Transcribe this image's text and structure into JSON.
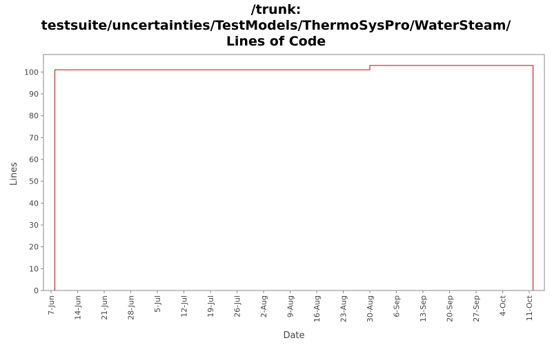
{
  "chart_data": {
    "type": "step",
    "title": [
      "/trunk:",
      "testsuite/uncertainties/TestModels/ThermoSysPro/WaterSteam/",
      "Lines of Code"
    ],
    "x_label": "Date",
    "y_label": "Lines",
    "x": [
      "8-Jun",
      "8-Jun",
      "30-Aug",
      "12-Oct"
    ],
    "values": [
      0,
      101,
      103,
      0
    ],
    "color": "#cc0000",
    "xlim": [
      "5-Jun",
      "15-Oct"
    ],
    "xticks": [
      "7-Jun",
      "14-Jun",
      "21-Jun",
      "28-Jun",
      "5-Jul",
      "12-Jul",
      "19-Jul",
      "26-Jul",
      "2-Aug",
      "9-Aug",
      "16-Aug",
      "23-Aug",
      "30-Aug",
      "6-Sep",
      "13-Sep",
      "20-Sep",
      "27-Sep",
      "4-Oct",
      "11-Oct"
    ],
    "ylim": [
      0,
      108
    ],
    "yticks": [
      0,
      10,
      20,
      30,
      40,
      50,
      60,
      70,
      80,
      90,
      100
    ],
    "grid": false
  }
}
